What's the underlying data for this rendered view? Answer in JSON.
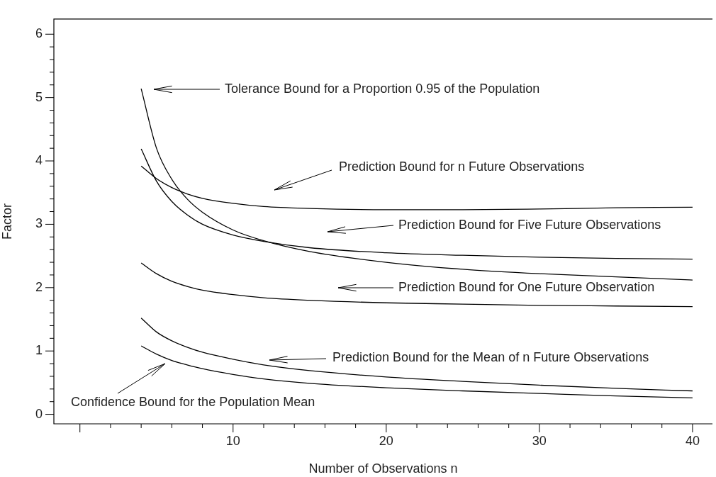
{
  "chart_data": {
    "type": "line",
    "xlabel": "Number of Observations n",
    "ylabel": "Factor",
    "xlim": [
      -1.7,
      41.3
    ],
    "ylim": [
      -0.15,
      6.24
    ],
    "xticks": [
      {
        "value": 0,
        "label": null
      },
      {
        "value": 2,
        "label": null
      },
      {
        "value": 4,
        "label": null
      },
      {
        "value": 6,
        "label": null
      },
      {
        "value": 8,
        "label": null
      },
      10,
      {
        "value": 12,
        "label": null
      },
      {
        "value": 14,
        "label": null
      },
      {
        "value": 16,
        "label": null
      },
      {
        "value": 18,
        "label": null
      },
      20,
      {
        "value": 22,
        "label": null
      },
      {
        "value": 24,
        "label": null
      },
      {
        "value": 26,
        "label": null
      },
      {
        "value": 28,
        "label": null
      },
      30,
      {
        "value": 32,
        "label": null
      },
      {
        "value": 34,
        "label": null
      },
      {
        "value": 36,
        "label": null
      },
      {
        "value": 38,
        "label": null
      },
      40
    ],
    "yticks": [
      0,
      {
        "value": 0.2,
        "label": null
      },
      {
        "value": 0.4,
        "label": null
      },
      {
        "value": 0.6,
        "label": null
      },
      {
        "value": 0.8,
        "label": null
      },
      1,
      {
        "value": 1.2,
        "label": null
      },
      {
        "value": 1.4,
        "label": null
      },
      {
        "value": 1.6,
        "label": null
      },
      {
        "value": 1.8,
        "label": null
      },
      2,
      {
        "value": 2.2,
        "label": null
      },
      {
        "value": 2.4,
        "label": null
      },
      {
        "value": 2.6,
        "label": null
      },
      {
        "value": 2.8,
        "label": null
      },
      3,
      {
        "value": 3.2,
        "label": null
      },
      {
        "value": 3.4,
        "label": null
      },
      {
        "value": 3.6,
        "label": null
      },
      {
        "value": 3.8,
        "label": null
      },
      4,
      {
        "value": 4.2,
        "label": null
      },
      {
        "value": 4.4,
        "label": null
      },
      {
        "value": 4.6,
        "label": null
      },
      {
        "value": 4.8,
        "label": null
      },
      5,
      {
        "value": 5.2,
        "label": null
      },
      {
        "value": 5.4,
        "label": null
      },
      {
        "value": 5.6,
        "label": null
      },
      {
        "value": 5.8,
        "label": null
      },
      6
    ],
    "x": [
      4,
      5,
      6,
      7,
      8,
      10,
      12,
      15,
      20,
      25,
      30,
      35,
      40
    ],
    "series": [
      {
        "color": "#000000",
        "values": [
          5.14,
          4.2,
          3.71,
          3.4,
          3.19,
          2.91,
          2.74,
          2.57,
          2.4,
          2.29,
          2.22,
          2.17,
          2.12
        ]
      },
      {
        "color": "#000000",
        "values": [
          3.92,
          3.72,
          3.58,
          3.48,
          3.41,
          3.33,
          3.28,
          3.25,
          3.23,
          3.23,
          3.24,
          3.26,
          3.27
        ]
      },
      {
        "color": "#000000",
        "values": [
          4.19,
          3.68,
          3.36,
          3.15,
          3.0,
          2.83,
          2.73,
          2.63,
          2.55,
          2.51,
          2.48,
          2.46,
          2.45
        ]
      },
      {
        "color": "#000000",
        "values": [
          2.39,
          2.22,
          2.1,
          2.02,
          1.96,
          1.89,
          1.84,
          1.8,
          1.76,
          1.74,
          1.72,
          1.71,
          1.7
        ]
      },
      {
        "color": "#000000",
        "values": [
          1.52,
          1.3,
          1.16,
          1.06,
          0.98,
          0.87,
          0.78,
          0.69,
          0.59,
          0.52,
          0.46,
          0.41,
          0.37
        ]
      },
      {
        "color": "#000000",
        "values": [
          1.08,
          0.95,
          0.85,
          0.78,
          0.72,
          0.63,
          0.56,
          0.49,
          0.42,
          0.37,
          0.33,
          0.29,
          0.26
        ]
      }
    ],
    "annotations": [
      "Tolerance Bound for a Proportion 0.95 of the Population",
      "Prediction Bound for n Future Observations",
      "Prediction Bound for Five Future Observations",
      "Prediction Bound for One Future Observation",
      "Prediction Bound for the Mean of n Future Observations",
      "Confidence Bound for the Population Mean"
    ],
    "grid": false,
    "legend": false,
    "marker": "none",
    "line_style": "solid"
  }
}
